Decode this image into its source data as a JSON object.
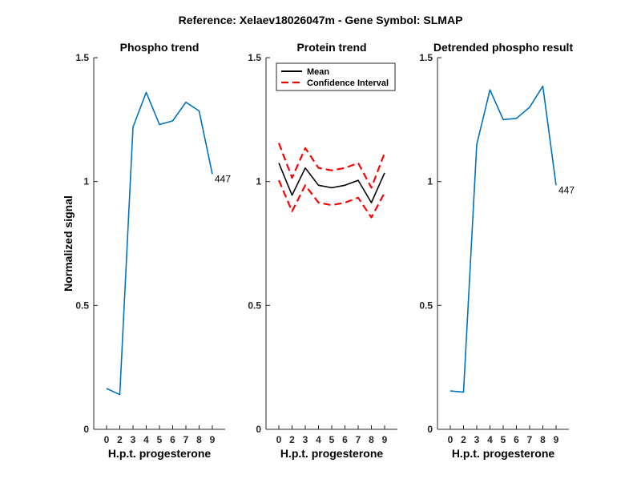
{
  "chart_data": [
    {
      "type": "line",
      "title": "Phospho trend",
      "xlabel": "H.p.t. progesterone",
      "ylabel": "Normalized signal",
      "x_ticks": [
        "0",
        "2",
        "3",
        "4",
        "5",
        "6",
        "7",
        "8",
        "9"
      ],
      "y_ticks": [
        "0",
        "0.5",
        "1",
        "1.5"
      ],
      "ylim": [
        0,
        1.5
      ],
      "series": [
        {
          "values": [
            0.165,
            0.14,
            1.22,
            1.36,
            1.23,
            1.245,
            1.32,
            1.285,
            1.03
          ],
          "color": "#0072BD",
          "style": "solid"
        }
      ],
      "annotation": {
        "text": "447",
        "at_index": 8
      }
    },
    {
      "type": "line",
      "title": "Protein trend",
      "xlabel": "H.p.t. progesterone",
      "x_ticks": [
        "0",
        "2",
        "3",
        "4",
        "5",
        "6",
        "7",
        "8",
        "9"
      ],
      "y_ticks": [
        "0",
        "0.5",
        "1",
        "1.5"
      ],
      "ylim": [
        0,
        1.5
      ],
      "legend_position": "top-right",
      "series": [
        {
          "name": "Mean",
          "values": [
            1.075,
            0.945,
            1.055,
            0.985,
            0.975,
            0.985,
            1.005,
            0.915,
            1.035
          ],
          "color": "#000000",
          "style": "solid"
        },
        {
          "name": "Confidence Interval",
          "values": [
            1.155,
            1.015,
            1.135,
            1.055,
            1.045,
            1.055,
            1.075,
            0.975,
            1.115
          ],
          "color": "#FF0000",
          "style": "dashed"
        },
        {
          "values": [
            1.005,
            0.88,
            0.985,
            0.915,
            0.905,
            0.915,
            0.935,
            0.855,
            0.955
          ],
          "color": "#FF0000",
          "style": "dashed"
        }
      ]
    },
    {
      "type": "line",
      "title": "Detrended phospho result",
      "xlabel": "H.p.t. progesterone",
      "x_ticks": [
        "0",
        "2",
        "3",
        "4",
        "5",
        "6",
        "7",
        "8",
        "9"
      ],
      "y_ticks": [
        "0",
        "0.5",
        "1",
        "1.5"
      ],
      "ylim": [
        0,
        1.5
      ],
      "series": [
        {
          "values": [
            0.155,
            0.15,
            1.15,
            1.37,
            1.25,
            1.255,
            1.3,
            1.385,
            0.985
          ],
          "color": "#0072BD",
          "style": "solid"
        }
      ],
      "annotation": {
        "text": "447",
        "at_index": 8
      }
    }
  ],
  "figure_title": "Reference:  Xelaev18026047m - Gene Symbol:  SLMAP"
}
